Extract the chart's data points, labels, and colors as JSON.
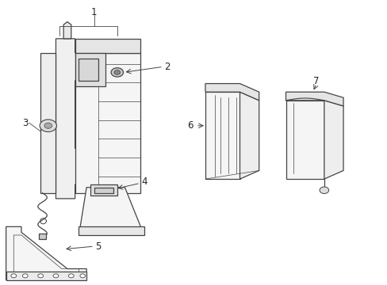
{
  "background_color": "#ffffff",
  "line_color": "#444444",
  "line_width": 0.9,
  "label_fontsize": 8.5,
  "parts": [
    1,
    2,
    3,
    4,
    5,
    6,
    7
  ]
}
